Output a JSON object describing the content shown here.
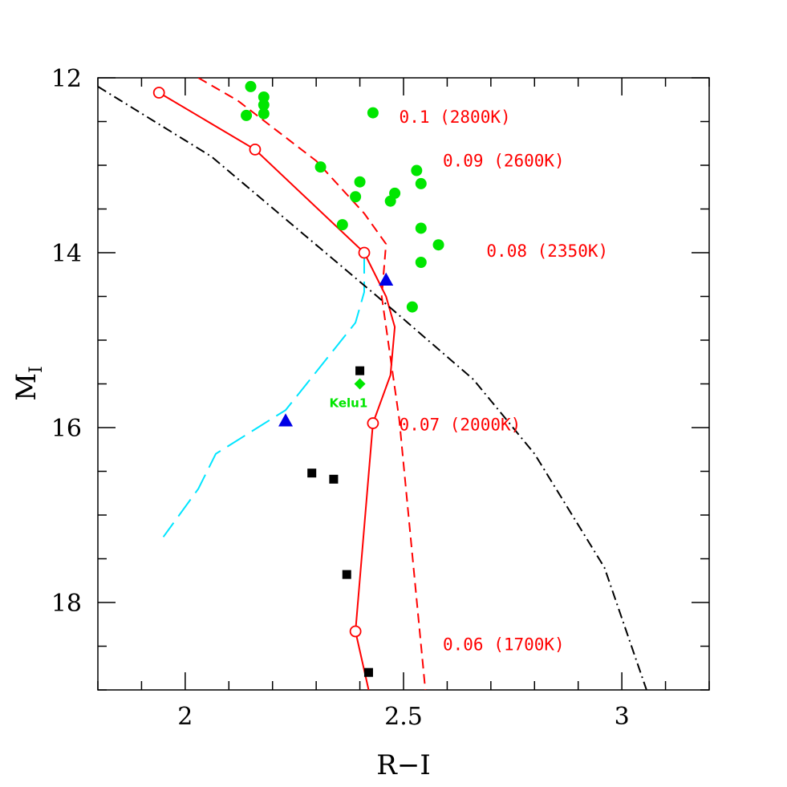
{
  "chart_data": {
    "type": "scatter",
    "xlabel": "R−I",
    "ylabel": "M",
    "ylabel_sub": "I",
    "xlim": [
      1.8,
      3.2
    ],
    "ylim": [
      19.0,
      12.0
    ],
    "y_inverted": true,
    "x_major_ticks": [
      2,
      2.5,
      3
    ],
    "x_tick_labels": [
      "2",
      "2.5",
      "3"
    ],
    "x_minor_step": 0.1,
    "y_major_ticks": [
      12,
      14,
      16,
      18
    ],
    "y_tick_labels": [
      "12",
      "14",
      "16",
      "18"
    ],
    "y_minor_step": 0.5,
    "grid": false,
    "colors": {
      "red": "#ff0000",
      "cyan": "#00e5ff",
      "green": "#00e600",
      "blue": "#0000e6",
      "black": "#000000"
    },
    "series": [
      {
        "style": "solid",
        "color": "#ff0000",
        "x": [
          1.94,
          2.16,
          2.41,
          2.46,
          2.48,
          2.47,
          2.43,
          2.39,
          2.42
        ],
        "y": [
          12.17,
          12.82,
          14.0,
          14.5,
          14.85,
          15.4,
          15.95,
          18.33,
          19.0
        ]
      },
      {
        "style": "dashed",
        "color": "#ff0000",
        "x": [
          2.03,
          2.12,
          2.3,
          2.41,
          2.46,
          2.45,
          2.49,
          2.55
        ],
        "y": [
          12.0,
          12.26,
          12.95,
          13.55,
          13.9,
          14.5,
          15.9,
          19.0
        ]
      },
      {
        "style": "longdash",
        "color": "#00e5ff",
        "x": [
          2.41,
          2.41,
          2.39,
          2.27,
          2.23,
          2.07,
          2.03,
          1.95
        ],
        "y": [
          14.0,
          14.45,
          14.8,
          15.55,
          15.8,
          16.3,
          16.7,
          17.25
        ]
      },
      {
        "style": "dashdot",
        "color": "#000000",
        "x": [
          1.8,
          2.06,
          2.44,
          2.66,
          2.8,
          2.96,
          3.06
        ],
        "y": [
          12.1,
          12.9,
          14.5,
          15.45,
          16.3,
          17.6,
          19.05
        ]
      },
      {
        "marker": "open-circle",
        "color": "#ff0000",
        "x": [
          1.94,
          2.16,
          2.41,
          2.43,
          2.39
        ],
        "y": [
          12.17,
          12.82,
          14.0,
          15.95,
          18.33
        ]
      },
      {
        "marker": "filled-circle",
        "color": "#00e600",
        "x": [
          2.15,
          2.18,
          2.18,
          2.14,
          2.18,
          2.43,
          2.31,
          2.53,
          2.4,
          2.54,
          2.39,
          2.48,
          2.47,
          2.54,
          2.36,
          2.58,
          2.54,
          2.52
        ],
        "y": [
          12.1,
          12.22,
          12.31,
          12.43,
          12.41,
          12.4,
          13.02,
          13.06,
          13.19,
          13.21,
          13.36,
          13.32,
          13.41,
          13.72,
          13.68,
          13.91,
          14.11,
          14.62
        ]
      },
      {
        "marker": "filled-triangle",
        "color": "#0000e6",
        "x": [
          2.46,
          2.23
        ],
        "y": [
          14.31,
          15.92
        ]
      },
      {
        "marker": "filled-square",
        "color": "#000000",
        "x": [
          2.4,
          2.29,
          2.34,
          2.37,
          2.42
        ],
        "y": [
          15.35,
          16.52,
          16.59,
          17.68,
          18.8
        ]
      },
      {
        "marker": "filled-diamond",
        "color": "#00e600",
        "x": [
          2.4
        ],
        "y": [
          15.5
        ]
      }
    ],
    "annotations": [
      {
        "text": "0.1 (2800K)",
        "x": 2.49,
        "y": 12.45
      },
      {
        "text": "0.09 (2600K)",
        "x": 2.59,
        "y": 12.95
      },
      {
        "text": "0.08 (2350K)",
        "x": 2.69,
        "y": 13.98
      },
      {
        "text": "0.07 (2000K)",
        "x": 2.49,
        "y": 15.97
      },
      {
        "text": "0.06 (1700K)",
        "x": 2.59,
        "y": 18.48
      }
    ],
    "point_labels": [
      {
        "text": "Kelu1",
        "x": 2.33,
        "y": 15.72
      }
    ]
  }
}
